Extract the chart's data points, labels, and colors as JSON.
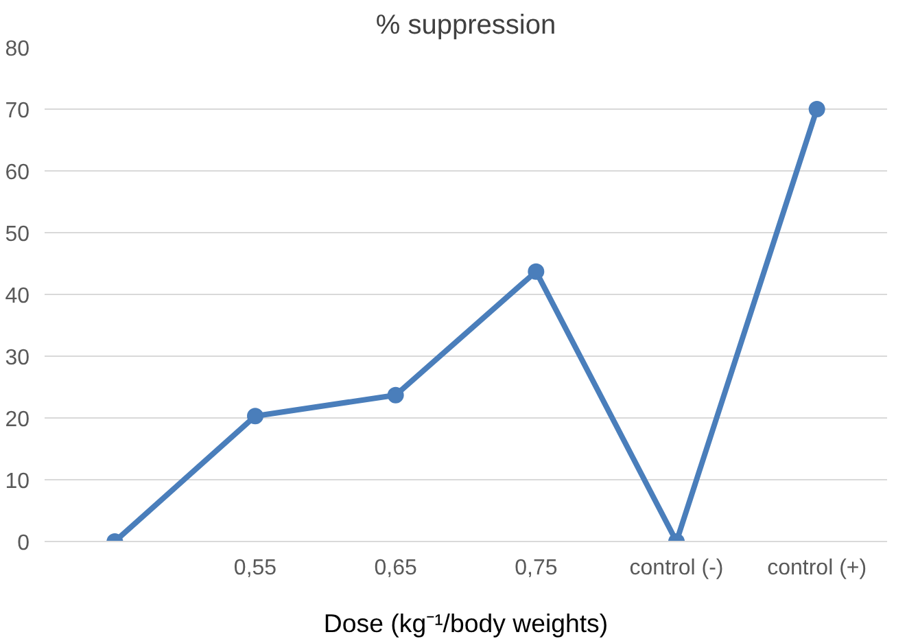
{
  "chart_data": {
    "type": "line",
    "title": "% suppression",
    "xlabel": "Dose (kg⁻¹/body weights)",
    "categories": [
      null,
      "0,55",
      "0,65",
      "0,75",
      "control (-)",
      "control (+)"
    ],
    "series": [
      {
        "color": "#4a7ebb",
        "values": [
          0,
          20.3,
          23.7,
          43.7,
          0,
          70
        ]
      }
    ],
    "ylim": [
      0,
      80
    ],
    "yticks": [
      0,
      10,
      20,
      30,
      40,
      50,
      60,
      70,
      80
    ],
    "grid": "y",
    "marker": "circle",
    "line_style": "solid"
  }
}
